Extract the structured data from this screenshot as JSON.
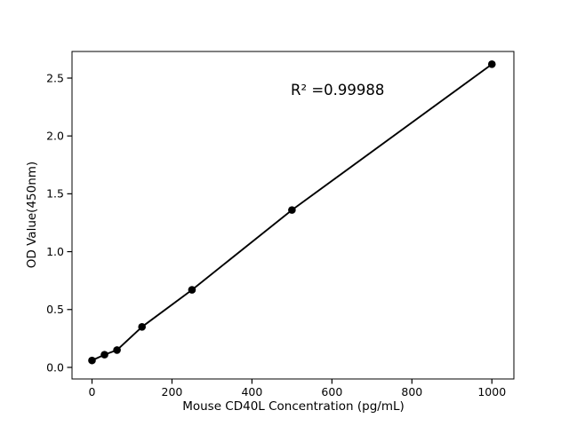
{
  "chart_data": {
    "type": "scatter",
    "subtype": "standard-curve-with-fit-line",
    "title": "",
    "xlabel": "Mouse CD40L Concentration (pg/mL)",
    "ylabel": "OD Value(450nm)",
    "annotation": {
      "text": "R² =0.99988",
      "r_squared": 0.99988
    },
    "x": [
      0,
      31.25,
      62.5,
      125,
      250,
      500,
      1000
    ],
    "y": [
      0.06,
      0.11,
      0.15,
      0.35,
      0.67,
      1.36,
      2.62
    ],
    "xticks": [
      "0",
      "200",
      "400",
      "600",
      "800",
      "1000"
    ],
    "xtick_values": [
      0,
      200,
      400,
      600,
      800,
      1000
    ],
    "yticks": [
      "0.0",
      "0.5",
      "1.0",
      "1.5",
      "2.0",
      "2.5"
    ],
    "ytick_values": [
      0.0,
      0.5,
      1.0,
      1.5,
      2.0,
      2.5
    ],
    "xlim": [
      -50,
      1055
    ],
    "ylim": [
      -0.1,
      2.73
    ],
    "grid": false,
    "legend": false,
    "line_color": "#000000",
    "marker_color": "#000000",
    "marker_shape": "circle",
    "axes_color": "#000000",
    "background": "#ffffff"
  }
}
